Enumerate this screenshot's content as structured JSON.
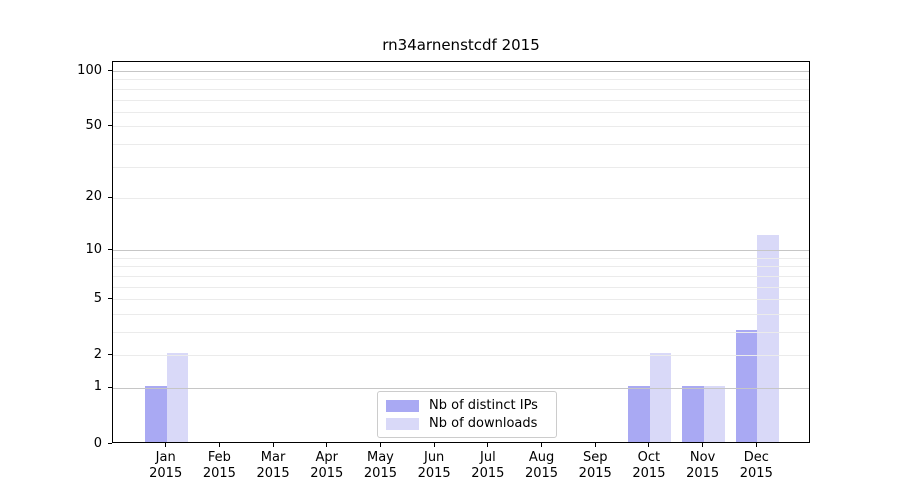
{
  "chart_data": {
    "type": "bar",
    "title": "rn34arnenstcdf 2015",
    "categories": [
      "Jan",
      "Feb",
      "Mar",
      "Apr",
      "May",
      "Jun",
      "Jul",
      "Aug",
      "Sep",
      "Oct",
      "Nov",
      "Dec"
    ],
    "x_year_label": "2015",
    "series": [
      {
        "name": "Nb of distinct IPs",
        "color": "#a9a9f3",
        "values": [
          1,
          0,
          0,
          0,
          0,
          0,
          0,
          0,
          0,
          1,
          1,
          3
        ]
      },
      {
        "name": "Nb of downloads",
        "color": "#d9d9f8",
        "values": [
          2,
          0,
          0,
          0,
          0,
          0,
          0,
          0,
          0,
          2,
          1,
          12
        ]
      }
    ],
    "yscale": "log1p",
    "ylim": [
      0,
      112
    ],
    "ytick_values": [
      0,
      1,
      2,
      5,
      10,
      20,
      50,
      100
    ],
    "major_gridlines": [
      1,
      10,
      100
    ],
    "minor_gridlines": [
      2,
      3,
      4,
      5,
      6,
      7,
      8,
      9,
      20,
      30,
      40,
      50,
      60,
      70,
      80,
      90
    ],
    "grid": true,
    "grid_above_bars": true,
    "legend_position": "lower center"
  },
  "colors": {
    "background": "#ffffff",
    "major_grid": "#c6c6c6",
    "minor_grid": "#ebebeb",
    "spine": "#000000",
    "text": "#000000",
    "legend_border": "#cccccc"
  }
}
